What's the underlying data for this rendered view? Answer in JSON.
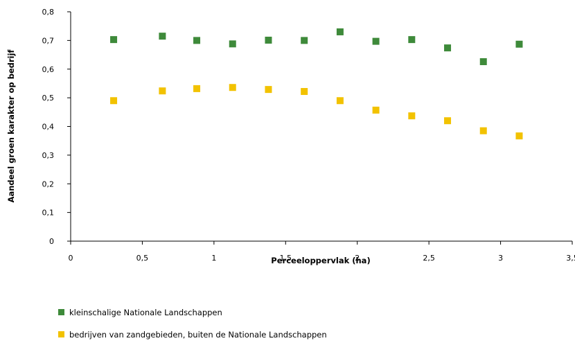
{
  "chart_data": {
    "type": "scatter",
    "xlabel": "Perceeloppervlak (ha)",
    "ylabel": "Aandeel groen karakter op bedrijf",
    "xlim": [
      0,
      3.5
    ],
    "ylim": [
      0,
      0.8
    ],
    "x_ticks": [
      "0",
      "0,5",
      "1",
      "1,5",
      "2",
      "2,5",
      "3",
      "3,5"
    ],
    "y_ticks": [
      "0",
      "0,1",
      "0,2",
      "0,3",
      "0,4",
      "0,5",
      "0,6",
      "0,7",
      "0,8"
    ],
    "grid": false,
    "legend_position": "bottom-left",
    "series": [
      {
        "name": "kleinschalige Nationale Landschappen",
        "color": "#3e8a3a",
        "marker": "square",
        "x": [
          0.3,
          0.64,
          0.88,
          1.13,
          1.38,
          1.63,
          1.88,
          2.13,
          2.38,
          2.63,
          2.88,
          3.13
        ],
        "y": [
          0.703,
          0.715,
          0.7,
          0.688,
          0.701,
          0.7,
          0.73,
          0.697,
          0.703,
          0.674,
          0.626,
          0.687
        ]
      },
      {
        "name": "bedrijven van zandgebieden, buiten de Nationale Landschappen",
        "color": "#f2c200",
        "marker": "square",
        "x": [
          0.3,
          0.64,
          0.88,
          1.13,
          1.38,
          1.63,
          1.88,
          2.13,
          2.38,
          2.63,
          2.88,
          3.13
        ],
        "y": [
          0.49,
          0.524,
          0.532,
          0.536,
          0.529,
          0.522,
          0.49,
          0.457,
          0.437,
          0.42,
          0.385,
          0.367
        ]
      }
    ]
  }
}
